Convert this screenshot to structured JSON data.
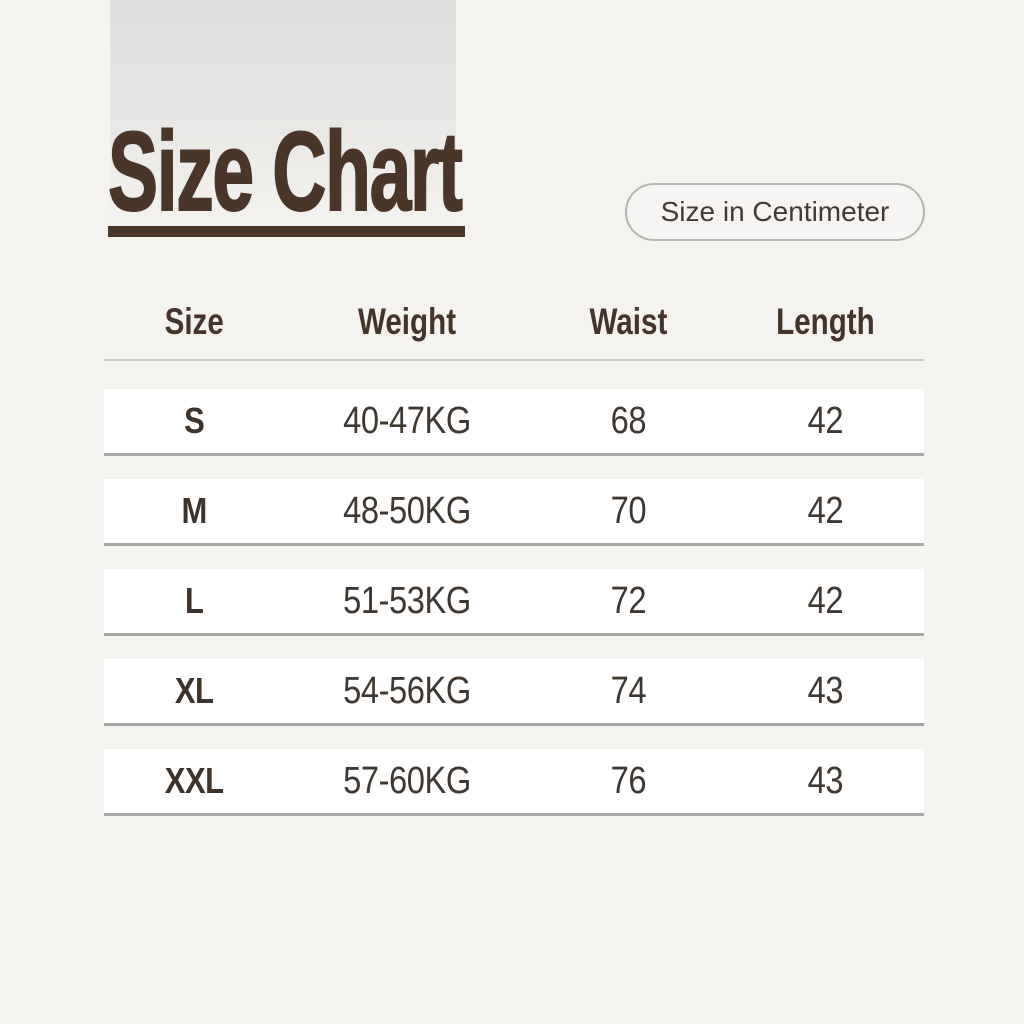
{
  "page": {
    "background": "#f4f3f0",
    "accent_brown": "#4a3628",
    "row_background": "#ffffff",
    "row_edge_gray": "#a8a7a5"
  },
  "header": {
    "title": "Size Chart",
    "unit_badge_label": "Size in Centimeter"
  },
  "chart_data": {
    "type": "table",
    "title": "Size Chart",
    "unit": "Size in Centimeter",
    "columns": [
      "Size",
      "Weight",
      "Waist",
      "Length"
    ],
    "rows": [
      [
        "S",
        "40-47KG",
        "68",
        "42"
      ],
      [
        "M",
        "48-50KG",
        "70",
        "42"
      ],
      [
        "L",
        "51-53KG",
        "72",
        "42"
      ],
      [
        "XL",
        "54-56KG",
        "74",
        "43"
      ],
      [
        "XXL",
        "57-60KG",
        "76",
        "43"
      ]
    ]
  }
}
